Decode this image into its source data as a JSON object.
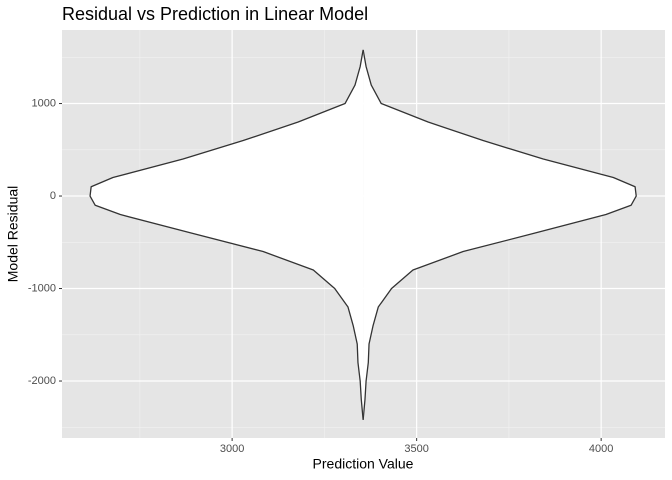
{
  "chart_data": {
    "type": "violin",
    "title": "Residual vs Prediction in Linear Model",
    "x_label": "Prediction Value",
    "y_label": "Model Residual",
    "center": 3355,
    "y": [
      1580,
      1400,
      1200,
      1000,
      800,
      600,
      400,
      200,
      100,
      0,
      -100,
      -200,
      -400,
      -600,
      -800,
      -1000,
      -1200,
      -1400,
      -1600,
      -1800,
      -2000,
      -2200,
      -2420
    ],
    "half_width": [
      0,
      8,
      22,
      49,
      176,
      325,
      488,
      678,
      737,
      740,
      726,
      658,
      466,
      271,
      135,
      77,
      41,
      27,
      16,
      14,
      8,
      5,
      0
    ],
    "fill": "#ffffff",
    "color": "#333333",
    "xlim": [
      2539,
      4173
    ],
    "xticks": [
      3000,
      3500,
      4000
    ],
    "ylim": [
      -2616,
      1795
    ],
    "yticks": [
      1000,
      0,
      -1000,
      -2000
    ],
    "grid": true
  }
}
